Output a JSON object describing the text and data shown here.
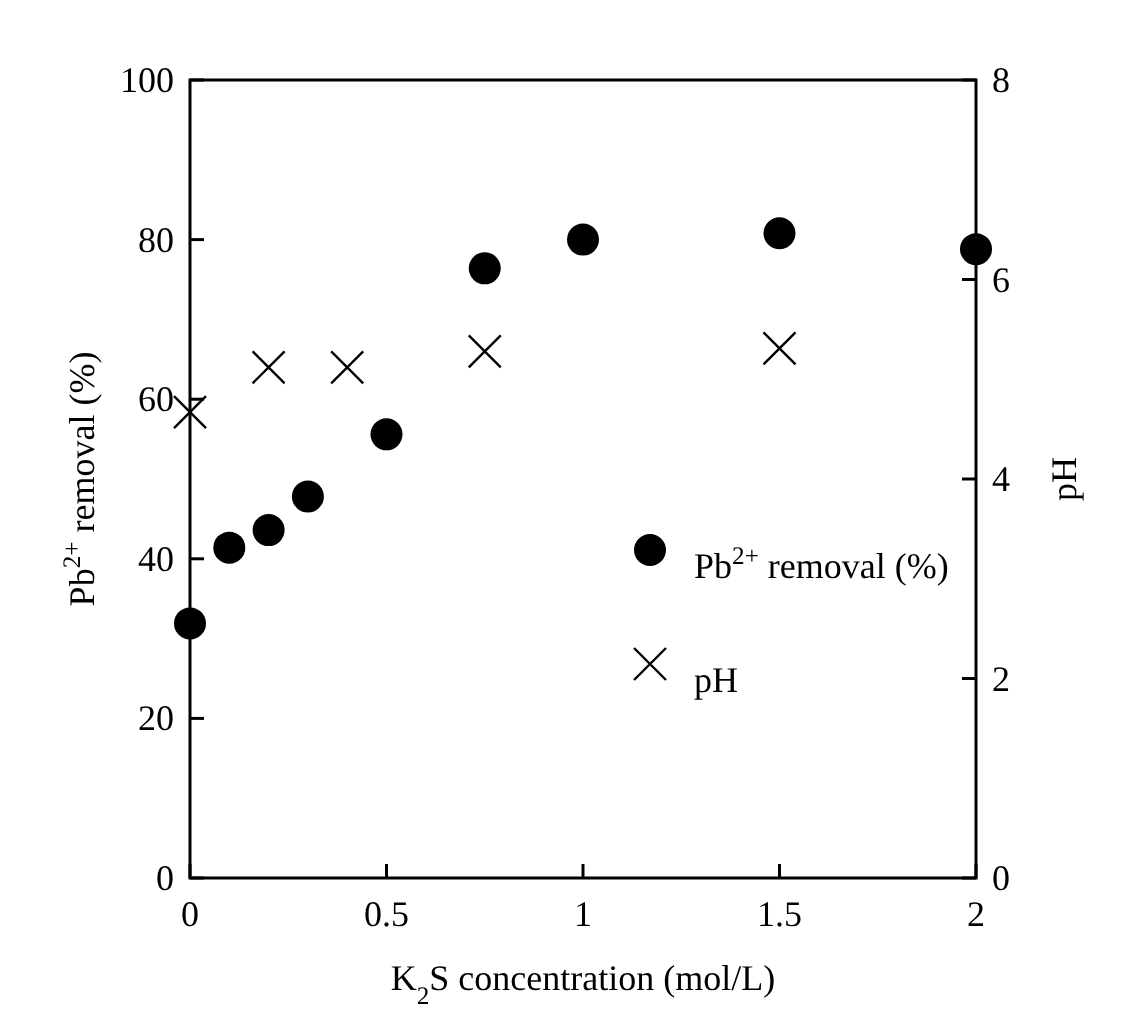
{
  "chart_data": {
    "type": "scatter",
    "xlabel": "K$_{2}$S concentration (mol/L)",
    "ylabel": "Pb$^{2+}$ removal (%)",
    "y2label": "pH",
    "xlim": [
      0,
      2
    ],
    "xticks": [
      0,
      0.5,
      1,
      1.5,
      2
    ],
    "ylim": [
      0,
      100
    ],
    "yticks": [
      0,
      20,
      40,
      60,
      80,
      100
    ],
    "y2lim": [
      0,
      8
    ],
    "y2ticks": [
      0,
      2,
      4,
      6,
      8
    ],
    "legend": "right",
    "grid": false,
    "series": [
      {
        "name": "Pb$^{2+}$ removal (%)",
        "color": "#000000",
        "marker": "circle",
        "x": [
          0,
          0.1,
          0.2,
          0.3,
          0.5,
          0.75,
          1,
          1.5,
          2
        ],
        "values": [
          31.9,
          41.4,
          43.6,
          47.8,
          55.6,
          76.4,
          80,
          80.8,
          78.8
        ]
      },
      {
        "name": "pH",
        "color": "#000000",
        "marker": "cross",
        "axis": "y2",
        "x": [
          0,
          0.2,
          0.4,
          0.75,
          1.5
        ],
        "values": [
          4.67,
          5.12,
          5.12,
          5.28,
          5.31
        ]
      }
    ]
  }
}
